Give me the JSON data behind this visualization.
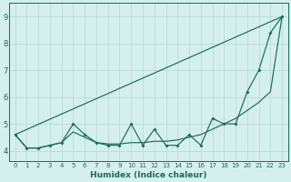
{
  "xlabel": "Humidex (Indice chaleur)",
  "xlim": [
    -0.5,
    23.5
  ],
  "ylim": [
    3.6,
    9.5
  ],
  "xticks": [
    0,
    1,
    2,
    3,
    4,
    5,
    6,
    7,
    8,
    9,
    10,
    11,
    12,
    13,
    14,
    15,
    16,
    17,
    18,
    19,
    20,
    21,
    22,
    23
  ],
  "yticks": [
    4,
    5,
    6,
    7,
    8,
    9
  ],
  "bg_color": "#d5efec",
  "grid_color": "#b8ddd9",
  "line_color": "#1a6b5a",
  "line1_zigzag": [
    4.6,
    4.1,
    4.1,
    4.2,
    4.3,
    5.0,
    4.6,
    4.3,
    4.2,
    4.2,
    5.0,
    4.2,
    4.8,
    4.2,
    4.2,
    4.6,
    4.2,
    5.2,
    5.0,
    5.0,
    6.2,
    7.0,
    8.4,
    9.0
  ],
  "line2_smooth": [
    4.6,
    4.1,
    4.1,
    4.2,
    4.3,
    4.7,
    4.5,
    4.3,
    4.25,
    4.25,
    4.3,
    4.3,
    4.35,
    4.35,
    4.4,
    4.5,
    4.6,
    4.8,
    5.0,
    5.2,
    5.5,
    5.8,
    6.2,
    9.0
  ],
  "line3_linear_start": 4.6,
  "line3_linear_end": 9.0,
  "line3_linear_x_start": 0,
  "line3_linear_x_end": 23,
  "xtick_fontsize": 5,
  "ytick_fontsize": 6,
  "xlabel_fontsize": 6.5
}
